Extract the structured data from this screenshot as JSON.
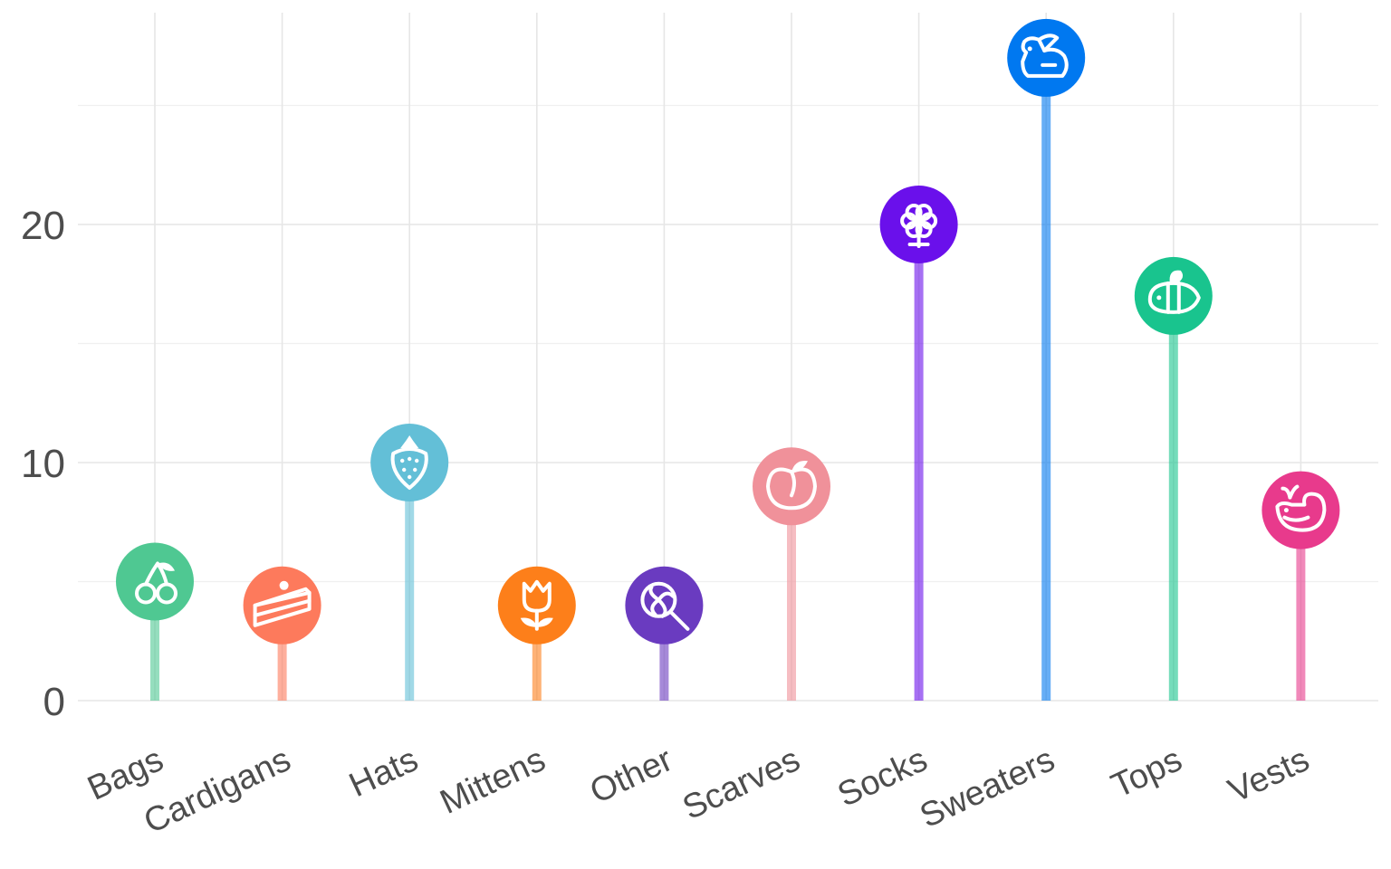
{
  "chart_data": {
    "type": "lollipop",
    "title": "",
    "xlabel": "",
    "ylabel": "",
    "categories": [
      "Bags",
      "Cardigans",
      "Hats",
      "Mittens",
      "Other",
      "Scarves",
      "Socks",
      "Sweaters",
      "Tops",
      "Vests"
    ],
    "values": [
      5,
      4,
      10,
      4,
      4,
      9,
      20,
      27,
      17,
      8
    ],
    "colors": [
      "#4fc892",
      "#fd7a5c",
      "#63bfd7",
      "#fd7f1a",
      "#6a3bc0",
      "#f0919a",
      "#6a10eb",
      "#0078f0",
      "#19c48e",
      "#e83a8c"
    ],
    "icons": [
      "cherries-icon",
      "cake-slice-icon",
      "strawberry-icon",
      "tulip-icon",
      "lollipop-icon",
      "peach-icon",
      "flower-icon",
      "rabbit-icon",
      "bee-icon",
      "whale-icon"
    ],
    "ylim": [
      0,
      29
    ],
    "yticks": [
      0,
      10,
      20
    ],
    "grid": true,
    "legend": "none"
  }
}
